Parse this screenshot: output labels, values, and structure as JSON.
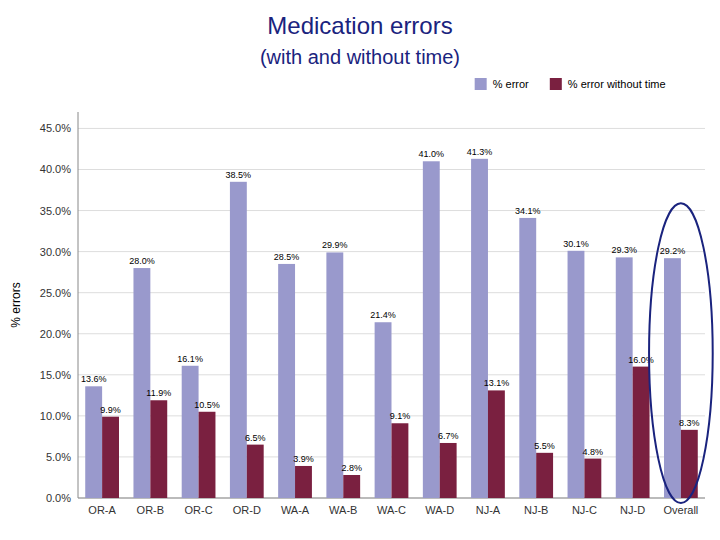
{
  "chart_data": {
    "type": "bar",
    "title": "Medication errors",
    "subtitle": "(with and without time)",
    "ylabel": "% errors",
    "categories": [
      "OR-A",
      "OR-B",
      "OR-C",
      "OR-D",
      "WA-A",
      "WA-B",
      "WA-C",
      "WA-D",
      "NJ-A",
      "NJ-B",
      "NJ-C",
      "NJ-D",
      "Overall"
    ],
    "series": [
      {
        "name": "% error",
        "color": "#9999cc",
        "values": [
          13.6,
          28.0,
          16.1,
          38.5,
          28.5,
          29.9,
          21.4,
          41.0,
          41.3,
          34.1,
          30.1,
          29.3,
          29.2
        ],
        "value_labels": [
          "13.6%",
          "28.0%",
          "16.1%",
          "38.5%",
          "28.5%",
          "29.9%",
          "21.4%",
          "41.0%",
          "41.3%",
          "34.1%",
          "30.1%",
          "29.3%",
          "29.2%"
        ]
      },
      {
        "name": "% error without time",
        "color": "#7a2040",
        "values": [
          9.9,
          11.9,
          10.5,
          6.5,
          3.9,
          2.8,
          9.1,
          6.7,
          13.1,
          5.5,
          4.8,
          16.0,
          8.3
        ],
        "value_labels": [
          "9.9%",
          "11.9%",
          "10.5%",
          "6.5%",
          "3.9%",
          "2.8%",
          "9.1%",
          "6.7%",
          "13.1%",
          "5.5%",
          "4.8%",
          "16.0%",
          "8.3%"
        ]
      }
    ],
    "ylim": [
      0,
      47
    ],
    "yticks": [
      {
        "value": 0.0,
        "label": "0.0%"
      },
      {
        "value": 5.0,
        "label": "5.0%"
      },
      {
        "value": 10.0,
        "label": "10.0%"
      },
      {
        "value": 15.0,
        "label": "15.0%"
      },
      {
        "value": 20.0,
        "label": "20.0%"
      },
      {
        "value": 25.0,
        "label": "25.0%"
      },
      {
        "value": 30.0,
        "label": "30.0%"
      },
      {
        "value": 35.0,
        "label": "35.0%"
      },
      {
        "value": 40.0,
        "label": "40.0%"
      },
      {
        "value": 45.0,
        "label": "45.0%"
      }
    ],
    "grid": true,
    "legend": "upper right",
    "data_labels": true
  }
}
